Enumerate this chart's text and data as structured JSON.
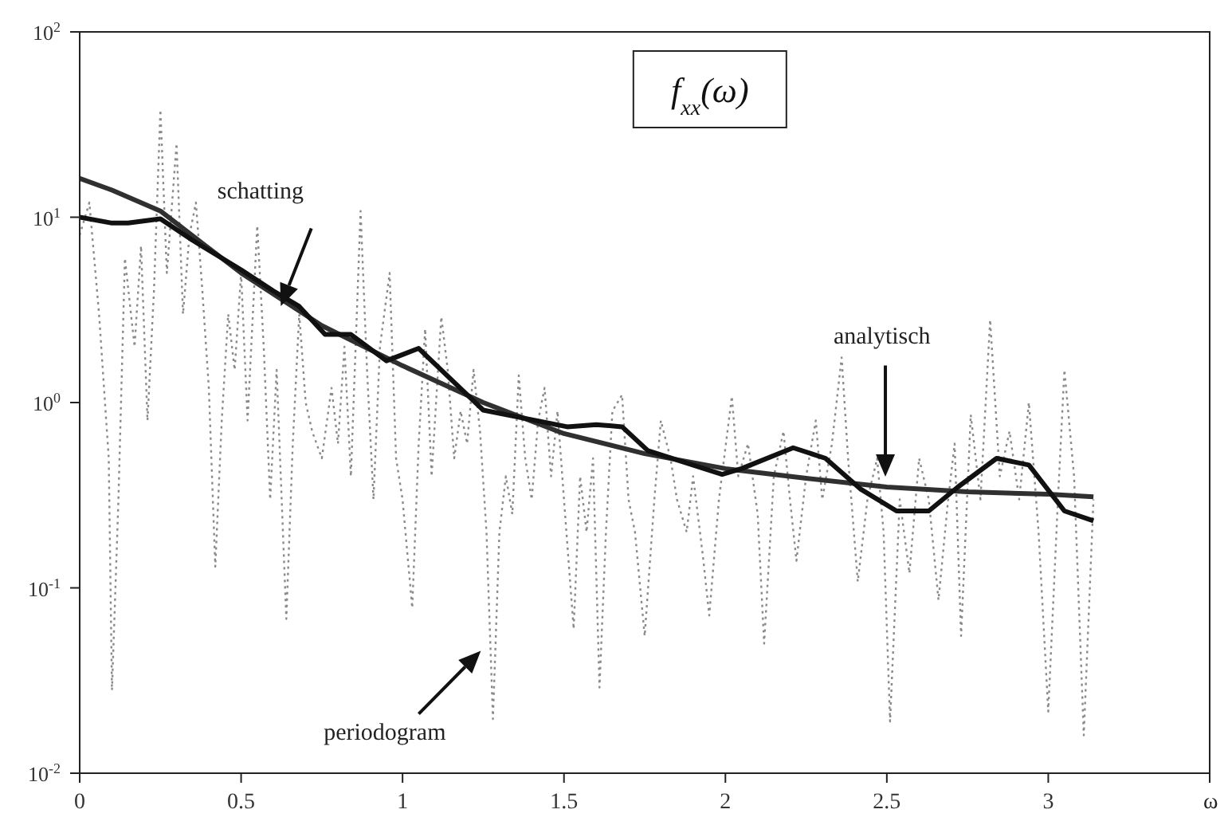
{
  "chart_data": {
    "type": "line",
    "title": "f$_{xx}$(ω)",
    "xlabel": "ω",
    "log": "y",
    "grid": false,
    "legend": false,
    "marker": "none",
    "annotations": [
      "periodogram",
      "analytisch",
      "schatting"
    ],
    "xlim": [
      0,
      3.5
    ],
    "xticks": [
      0,
      0.5,
      1,
      1.5,
      2,
      2.5,
      3,
      {
        "value": 3.5,
        "label": null
      }
    ],
    "ylim": [
      0.01,
      100
    ],
    "yticks": [
      {
        "value": 0.01,
        "label": "10$^{-2}$"
      },
      {
        "value": 0.1,
        "label": "10$^{-1}$"
      },
      {
        "value": 1,
        "label": "10$^{0}$"
      },
      {
        "value": 10,
        "label": "10$^{1}$"
      },
      {
        "value": 100,
        "label": "10$^{2}$"
      }
    ],
    "series": [
      {
        "color": "#8a8a8a",
        "line_style": "dotted",
        "x": [
          0,
          0.03,
          0.06,
          0.09,
          0.1,
          0.12,
          0.14,
          0.17,
          0.19,
          0.21,
          0.23,
          0.25,
          0.27,
          0.3,
          0.32,
          0.34,
          0.36,
          0.38,
          0.4,
          0.42,
          0.44,
          0.46,
          0.48,
          0.5,
          0.52,
          0.55,
          0.57,
          0.59,
          0.61,
          0.64,
          0.66,
          0.68,
          0.7,
          0.72,
          0.75,
          0.78,
          0.8,
          0.82,
          0.84,
          0.87,
          0.89,
          0.91,
          0.93,
          0.96,
          0.98,
          1.0,
          1.03,
          1.05,
          1.07,
          1.09,
          1.12,
          1.14,
          1.16,
          1.18,
          1.2,
          1.22,
          1.24,
          1.26,
          1.28,
          1.3,
          1.32,
          1.34,
          1.36,
          1.38,
          1.4,
          1.42,
          1.44,
          1.46,
          1.48,
          1.5,
          1.53,
          1.55,
          1.57,
          1.59,
          1.61,
          1.63,
          1.65,
          1.68,
          1.7,
          1.72,
          1.75,
          1.78,
          1.8,
          1.83,
          1.85,
          1.88,
          1.9,
          1.93,
          1.95,
          1.98,
          2.02,
          2.04,
          2.07,
          2.1,
          2.12,
          2.15,
          2.18,
          2.2,
          2.22,
          2.25,
          2.28,
          2.3,
          2.33,
          2.36,
          2.38,
          2.41,
          2.44,
          2.47,
          2.49,
          2.51,
          2.54,
          2.57,
          2.6,
          2.63,
          2.66,
          2.69,
          2.71,
          2.73,
          2.76,
          2.79,
          2.82,
          2.85,
          2.88,
          2.91,
          2.94,
          2.97,
          3.0,
          3.03,
          3.05,
          3.08,
          3.11,
          3.14
        ],
        "values": [
          8,
          12,
          3,
          0.5,
          0.028,
          0.3,
          6,
          2,
          7,
          0.8,
          4,
          38,
          5,
          25,
          3,
          8,
          12,
          4,
          1.2,
          0.13,
          0.8,
          3,
          1.5,
          5,
          0.8,
          9,
          2,
          0.3,
          1.5,
          0.068,
          0.6,
          3,
          1,
          0.7,
          0.5,
          1.2,
          0.6,
          2,
          0.4,
          10.8,
          1.5,
          0.3,
          2,
          5,
          0.5,
          0.3,
          0.078,
          0.6,
          2.5,
          0.4,
          2.9,
          1.5,
          0.5,
          0.9,
          0.6,
          1.5,
          0.7,
          0.2,
          0.0196,
          0.2,
          0.4,
          0.25,
          1.4,
          0.5,
          0.3,
          0.8,
          1.2,
          0.4,
          0.9,
          0.3,
          0.06,
          0.4,
          0.2,
          0.5,
          0.029,
          0.2,
          0.9,
          1.1,
          0.3,
          0.2,
          0.055,
          0.3,
          0.8,
          0.5,
          0.3,
          0.2,
          0.4,
          0.15,
          0.071,
          0.3,
          1.08,
          0.4,
          0.6,
          0.25,
          0.05,
          0.4,
          0.7,
          0.3,
          0.14,
          0.4,
          0.8,
          0.3,
          0.6,
          1.75,
          0.5,
          0.108,
          0.3,
          0.5,
          0.2,
          0.019,
          0.3,
          0.12,
          0.5,
          0.3,
          0.086,
          0.3,
          0.6,
          0.055,
          0.86,
          0.3,
          2.8,
          0.4,
          0.7,
          0.3,
          1.0,
          0.2,
          0.0215,
          0.3,
          1.5,
          0.4,
          0.016,
          0.3
        ]
      },
      {
        "color": "#303030",
        "line_style": "solid",
        "x": [
          0,
          0.1,
          0.25,
          0.5,
          0.75,
          1.0,
          1.25,
          1.5,
          1.75,
          2.0,
          2.25,
          2.5,
          2.75,
          3.0,
          3.14
        ],
        "values": [
          16.2,
          14,
          10.8,
          5.0,
          2.6,
          1.58,
          1.0,
          0.68,
          0.53,
          0.44,
          0.39,
          0.35,
          0.33,
          0.32,
          0.31
        ]
      },
      {
        "color": "#111111",
        "line_style": "solid",
        "x": [
          0,
          0.1,
          0.15,
          0.25,
          0.35,
          0.5,
          0.6,
          0.68,
          0.76,
          0.84,
          0.95,
          1.05,
          1.25,
          1.51,
          1.6,
          1.68,
          1.76,
          1.99,
          2.05,
          2.21,
          2.31,
          2.42,
          2.53,
          2.63,
          2.72,
          2.84,
          2.94,
          3.05,
          3.14
        ],
        "values": [
          10,
          9.3,
          9.3,
          9.8,
          7.5,
          5.2,
          4.0,
          3.3,
          2.33,
          2.33,
          1.68,
          1.96,
          0.91,
          0.74,
          0.76,
          0.74,
          0.55,
          0.41,
          0.44,
          0.57,
          0.5,
          0.34,
          0.26,
          0.26,
          0.35,
          0.5,
          0.46,
          0.26,
          0.23
        ]
      }
    ]
  }
}
